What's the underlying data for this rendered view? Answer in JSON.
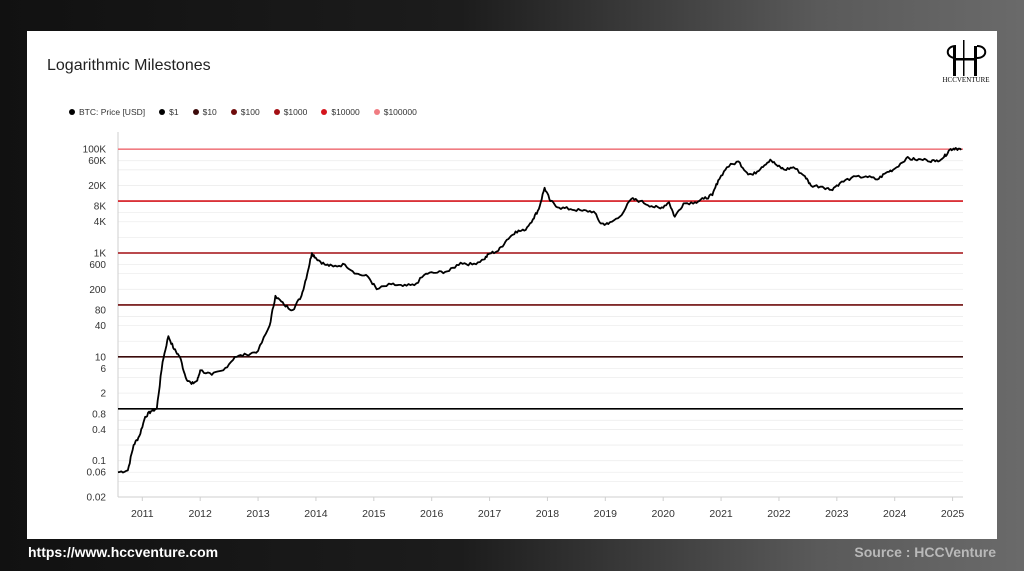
{
  "footer": {
    "website": "https://www.hccventure.com",
    "source": "Source : HCCVenture"
  },
  "logo": {
    "text": "HCCVENTURE"
  },
  "chart_data": {
    "type": "line",
    "title": "Logarithmic Milestones",
    "xlabel": "",
    "ylabel": "",
    "y_scale": "log",
    "ylim": [
      0.02,
      150000
    ],
    "xlim": [
      2010.58,
      2025.18
    ],
    "grid": true,
    "legend_position": "top-left",
    "y_ticks": [
      {
        "value": 100000,
        "label": "100K"
      },
      {
        "value": 60000,
        "label": "60K"
      },
      {
        "value": 20000,
        "label": "20K"
      },
      {
        "value": 8000,
        "label": "8K"
      },
      {
        "value": 4000,
        "label": "4K"
      },
      {
        "value": 1000,
        "label": "1K"
      },
      {
        "value": 600,
        "label": "600"
      },
      {
        "value": 200,
        "label": "200"
      },
      {
        "value": 80,
        "label": "80"
      },
      {
        "value": 40,
        "label": "40"
      },
      {
        "value": 10,
        "label": "10"
      },
      {
        "value": 6,
        "label": "6"
      },
      {
        "value": 2,
        "label": "2"
      },
      {
        "value": 0.8,
        "label": "0.8"
      },
      {
        "value": 0.4,
        "label": "0.4"
      },
      {
        "value": 0.1,
        "label": "0.1"
      },
      {
        "value": 0.06,
        "label": "0.06"
      },
      {
        "value": 0.02,
        "label": "0.02"
      }
    ],
    "x_ticks": [
      "2011",
      "2012",
      "2013",
      "2014",
      "2015",
      "2016",
      "2017",
      "2018",
      "2019",
      "2020",
      "2021",
      "2022",
      "2023",
      "2024",
      "2025"
    ],
    "milestones": [
      {
        "name": "$1",
        "value": 1,
        "color": "#000000"
      },
      {
        "name": "$10",
        "value": 10,
        "color": "#3b0a0a"
      },
      {
        "name": "$100",
        "value": 100,
        "color": "#6e0b0b"
      },
      {
        "name": "$1000",
        "value": 1000,
        "color": "#a40f14"
      },
      {
        "name": "$10000",
        "value": 10000,
        "color": "#d4141c"
      },
      {
        "name": "$100000",
        "value": 100000,
        "color": "#f07c82"
      }
    ],
    "series": [
      {
        "name": "BTC: Price [USD]",
        "color": "#000000",
        "points": [
          [
            2010.58,
            0.06
          ],
          [
            2010.75,
            0.065
          ],
          [
            2010.85,
            0.2
          ],
          [
            2010.95,
            0.3
          ],
          [
            2011.05,
            0.7
          ],
          [
            2011.15,
            0.9
          ],
          [
            2011.25,
            1.0
          ],
          [
            2011.35,
            8
          ],
          [
            2011.45,
            25
          ],
          [
            2011.55,
            14
          ],
          [
            2011.65,
            10
          ],
          [
            2011.75,
            4
          ],
          [
            2011.85,
            3
          ],
          [
            2011.95,
            3.5
          ],
          [
            2012.0,
            5.5
          ],
          [
            2012.2,
            4.5
          ],
          [
            2012.4,
            5.5
          ],
          [
            2012.6,
            10
          ],
          [
            2012.8,
            11
          ],
          [
            2013.0,
            13
          ],
          [
            2013.2,
            40
          ],
          [
            2013.3,
            150
          ],
          [
            2013.45,
            100
          ],
          [
            2013.6,
            80
          ],
          [
            2013.75,
            150
          ],
          [
            2013.85,
            400
          ],
          [
            2013.93,
            1000
          ],
          [
            2014.0,
            800
          ],
          [
            2014.15,
            600
          ],
          [
            2014.3,
            550
          ],
          [
            2014.5,
            600
          ],
          [
            2014.7,
            400
          ],
          [
            2014.9,
            350
          ],
          [
            2015.05,
            200
          ],
          [
            2015.3,
            250
          ],
          [
            2015.5,
            230
          ],
          [
            2015.7,
            240
          ],
          [
            2015.9,
            400
          ],
          [
            2016.1,
            420
          ],
          [
            2016.3,
            450
          ],
          [
            2016.5,
            650
          ],
          [
            2016.7,
            600
          ],
          [
            2016.9,
            750
          ],
          [
            2017.0,
            980
          ],
          [
            2017.15,
            1100
          ],
          [
            2017.3,
            1800
          ],
          [
            2017.45,
            2600
          ],
          [
            2017.6,
            2700
          ],
          [
            2017.75,
            4500
          ],
          [
            2017.85,
            7000
          ],
          [
            2017.95,
            18000
          ],
          [
            2018.05,
            10000
          ],
          [
            2018.2,
            7500
          ],
          [
            2018.4,
            7000
          ],
          [
            2018.6,
            6500
          ],
          [
            2018.8,
            6300
          ],
          [
            2018.92,
            3700
          ],
          [
            2019.05,
            3600
          ],
          [
            2019.25,
            5000
          ],
          [
            2019.45,
            11000
          ],
          [
            2019.6,
            10000
          ],
          [
            2019.8,
            8000
          ],
          [
            2019.95,
            7200
          ],
          [
            2020.1,
            9500
          ],
          [
            2020.2,
            5000
          ],
          [
            2020.35,
            9000
          ],
          [
            2020.55,
            9500
          ],
          [
            2020.7,
            11000
          ],
          [
            2020.85,
            13000
          ],
          [
            2020.95,
            25000
          ],
          [
            2021.1,
            45000
          ],
          [
            2021.3,
            58000
          ],
          [
            2021.45,
            35000
          ],
          [
            2021.55,
            32000
          ],
          [
            2021.7,
            45000
          ],
          [
            2021.85,
            63000
          ],
          [
            2021.98,
            47000
          ],
          [
            2022.1,
            40000
          ],
          [
            2022.25,
            45000
          ],
          [
            2022.45,
            30000
          ],
          [
            2022.55,
            20000
          ],
          [
            2022.75,
            19000
          ],
          [
            2022.9,
            16500
          ],
          [
            2023.05,
            22000
          ],
          [
            2023.25,
            28000
          ],
          [
            2023.5,
            30000
          ],
          [
            2023.7,
            26000
          ],
          [
            2023.85,
            35000
          ],
          [
            2024.0,
            42000
          ],
          [
            2024.2,
            67000
          ],
          [
            2024.35,
            63000
          ],
          [
            2024.55,
            62000
          ],
          [
            2024.7,
            58000
          ],
          [
            2024.85,
            70000
          ],
          [
            2024.95,
            98000
          ],
          [
            2025.05,
            105000
          ],
          [
            2025.15,
            97000
          ]
        ]
      }
    ]
  }
}
